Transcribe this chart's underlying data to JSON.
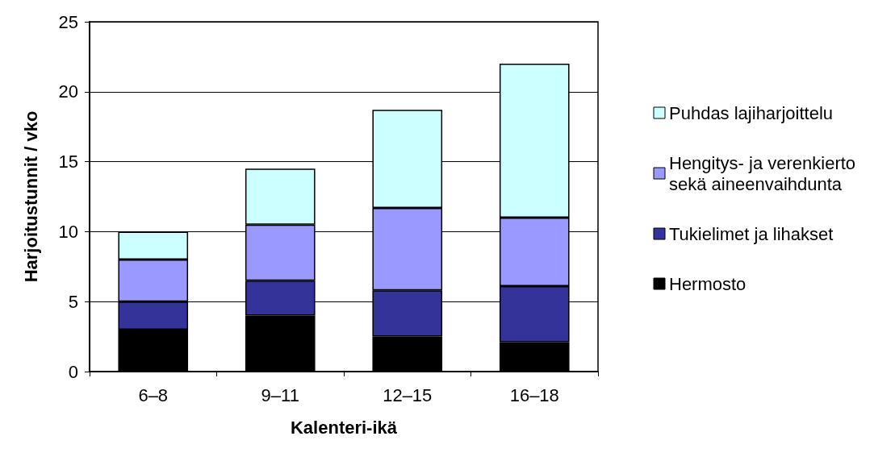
{
  "chart_data": {
    "type": "bar",
    "stacked": true,
    "xlabel": "Kalenteri-ikä",
    "ylabel": "Harjoitustunnit / vko",
    "categories": [
      "6–8",
      "9–11",
      "12–15",
      "16–18"
    ],
    "series": [
      {
        "name": "Hermosto",
        "color": "#000000",
        "values": [
          3,
          4,
          2.5,
          2.1
        ]
      },
      {
        "name": "Tukielimet ja lihakset",
        "color": "#333399",
        "values": [
          2,
          2.5,
          3.3,
          4.0
        ]
      },
      {
        "name": "Hengitys- ja verenkierto sekä aineenvaihdunta",
        "color": "#9999ff",
        "values": [
          3,
          4,
          5.9,
          4.9
        ]
      },
      {
        "name": "Puhdas lajiharjoittelu",
        "color": "#ccffff",
        "values": [
          2,
          4,
          7.0,
          11.0
        ]
      }
    ],
    "ylim": [
      0,
      25
    ],
    "yticks": [
      0,
      5,
      10,
      15,
      20,
      25
    ],
    "grid": "y",
    "legend": "right"
  }
}
